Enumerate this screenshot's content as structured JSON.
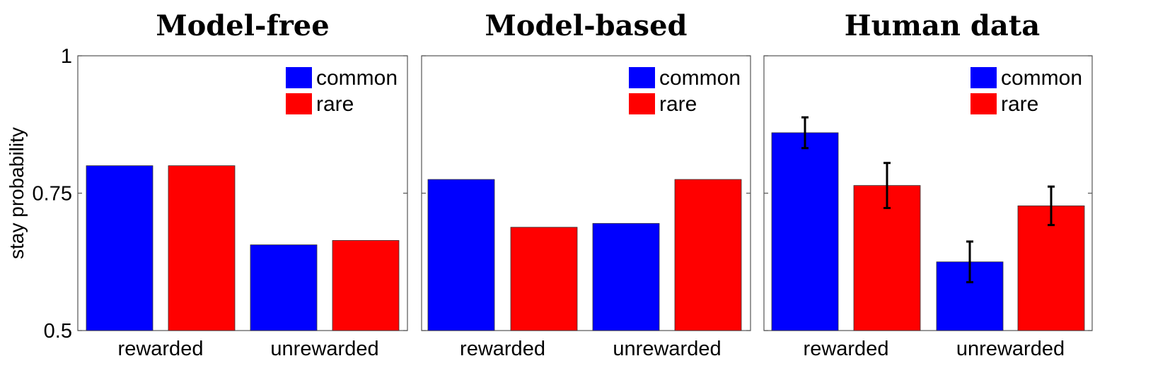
{
  "chart_data": [
    {
      "type": "bar",
      "title": "Model-free",
      "ylabel": "stay probability",
      "ylim": [
        0.5,
        1
      ],
      "yticks": [
        "0.5",
        "0.75",
        "1"
      ],
      "categories": [
        "rewarded",
        "unrewarded"
      ],
      "legend": {
        "position": "top-right"
      },
      "error_bars": false,
      "series": [
        {
          "name": "common",
          "color": "#0000ff",
          "values": [
            0.8,
            0.656
          ]
        },
        {
          "name": "rare",
          "color": "#ff0000",
          "values": [
            0.8,
            0.664
          ]
        }
      ]
    },
    {
      "type": "bar",
      "title": "Model-based",
      "ylim": [
        0.5,
        1
      ],
      "categories": [
        "rewarded",
        "unrewarded"
      ],
      "legend": {
        "position": "top-right"
      },
      "error_bars": false,
      "series": [
        {
          "name": "common",
          "color": "#0000ff",
          "values": [
            0.775,
            0.695
          ]
        },
        {
          "name": "rare",
          "color": "#ff0000",
          "values": [
            0.688,
            0.775
          ]
        }
      ]
    },
    {
      "type": "bar",
      "title": "Human data",
      "ylim": [
        0.5,
        1
      ],
      "categories": [
        "rewarded",
        "unrewarded"
      ],
      "legend": {
        "position": "top-right"
      },
      "error_bars": true,
      "series": [
        {
          "name": "common",
          "color": "#0000ff",
          "values": [
            0.86,
            0.625
          ],
          "errors": [
            0.028,
            0.037
          ]
        },
        {
          "name": "rare",
          "color": "#ff0000",
          "values": [
            0.764,
            0.727
          ],
          "errors": [
            0.041,
            0.035
          ]
        }
      ]
    }
  ]
}
